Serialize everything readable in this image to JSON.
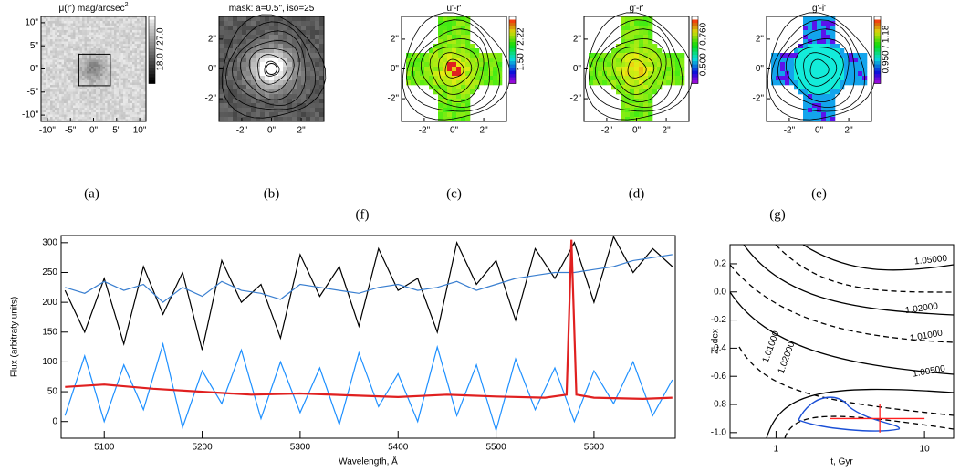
{
  "panels": [
    {
      "title": [
        "μ(r') mag/arcsec",
        "2"
      ],
      "xticks": [
        "-10\"",
        "-5\"",
        "0\"",
        "5\"",
        "10\""
      ],
      "yticks": [
        "10\"",
        "5\"",
        "0\"",
        "-5\"",
        "-10\""
      ],
      "colorbar": "18.0 / 27.0",
      "caption": "(a)"
    },
    {
      "title": [
        "mask: a=0.5\", iso=25"
      ],
      "xticks": [
        "-2\"",
        "0\"",
        "2\""
      ],
      "yticks": [
        "2\"",
        "0\"",
        "-2\""
      ],
      "caption": "(b)"
    },
    {
      "title": [
        "u'-r'"
      ],
      "xticks": [
        "-2\"",
        "0\"",
        "2\""
      ],
      "yticks": [
        "2\"",
        "0\"",
        "-2\""
      ],
      "colorbar": "1.50 / 2.22",
      "caption": "(c)"
    },
    {
      "title": [
        "g'-r'"
      ],
      "xticks": [
        "-2\"",
        "0\"",
        "2\""
      ],
      "yticks": [
        "2\"",
        "0\"",
        "-2\""
      ],
      "colorbar": "0.500 / 0.760",
      "caption": "(d)"
    },
    {
      "title": [
        "g'-i'"
      ],
      "xticks": [
        "-2\"",
        "0\"",
        "2\""
      ],
      "yticks": [
        "2\"",
        "0\"",
        "-2\""
      ],
      "colorbar": "0.950 / 1.18",
      "caption": "(e)"
    }
  ],
  "captions": {
    "f": "(f)",
    "g": "(g)"
  },
  "chart_data": [
    {
      "type": "line",
      "x_label": "Wavelength, Å",
      "y_label": "Flux (arbitraty units)",
      "xlim": [
        5056,
        5683
      ],
      "ylim": [
        -28,
        312
      ],
      "xticks": [
        5100,
        5200,
        5300,
        5400,
        5500,
        5600
      ],
      "yticks": [
        0,
        50,
        100,
        150,
        200,
        250,
        300
      ],
      "series": [
        {
          "color": "#000000",
          "x": [
            5060,
            5080,
            5100,
            5120,
            5140,
            5160,
            5180,
            5200,
            5220,
            5240,
            5260,
            5280,
            5300,
            5320,
            5340,
            5360,
            5380,
            5400,
            5420,
            5440,
            5460,
            5480,
            5500,
            5520,
            5540,
            5560,
            5580,
            5600,
            5620,
            5640,
            5660,
            5680
          ],
          "values": [
            220,
            150,
            240,
            130,
            260,
            180,
            250,
            120,
            270,
            200,
            230,
            140,
            280,
            210,
            260,
            160,
            290,
            220,
            240,
            150,
            300,
            230,
            270,
            170,
            290,
            240,
            300,
            200,
            310,
            250,
            290,
            260
          ]
        },
        {
          "color": "#1e90ff",
          "x": [
            5060,
            5080,
            5100,
            5120,
            5140,
            5160,
            5180,
            5200,
            5220,
            5240,
            5260,
            5280,
            5300,
            5320,
            5340,
            5360,
            5380,
            5400,
            5420,
            5440,
            5460,
            5480,
            5500,
            5520,
            5540,
            5560,
            5580,
            5600,
            5620,
            5640,
            5660,
            5680
          ],
          "values": [
            10,
            110,
            0,
            95,
            20,
            130,
            -10,
            85,
            30,
            120,
            5,
            100,
            15,
            90,
            -5,
            115,
            25,
            80,
            0,
            125,
            10,
            95,
            -15,
            105,
            20,
            90,
            0,
            85,
            30,
            100,
            10,
            70
          ]
        },
        {
          "color": "#3a7fd0",
          "x": [
            5060,
            5080,
            5100,
            5120,
            5140,
            5160,
            5180,
            5200,
            5220,
            5240,
            5260,
            5280,
            5300,
            5320,
            5340,
            5360,
            5380,
            5400,
            5420,
            5440,
            5460,
            5480,
            5500,
            5520,
            5540,
            5560,
            5580,
            5600,
            5620,
            5640,
            5660,
            5680
          ],
          "values": [
            225,
            215,
            235,
            220,
            230,
            200,
            225,
            210,
            235,
            220,
            215,
            205,
            230,
            225,
            220,
            215,
            225,
            230,
            220,
            225,
            235,
            220,
            230,
            240,
            245,
            250,
            250,
            255,
            260,
            270,
            275,
            280
          ]
        },
        {
          "color": "#e02020",
          "x": [
            5060,
            5100,
            5150,
            5200,
            5250,
            5300,
            5350,
            5400,
            5450,
            5500,
            5550,
            5572,
            5577,
            5582,
            5600,
            5650,
            5680
          ],
          "values": [
            58,
            62,
            55,
            50,
            45,
            47,
            44,
            41,
            45,
            42,
            40,
            45,
            305,
            45,
            40,
            38,
            40
          ]
        }
      ]
    },
    {
      "type": "contour",
      "x_label": "t, Gyr",
      "y_label": "Z, dex",
      "log_x": true,
      "xlim": [
        0.49,
        15.7
      ],
      "ylim": [
        -1.04,
        0.336
      ],
      "xticks": [
        1,
        10
      ],
      "yticks": [
        {
          "value": 0.2,
          "label": "0.2"
        },
        {
          "value": 0,
          "label": "0.0"
        },
        {
          "value": -0.2,
          "label": "-0.2"
        },
        {
          "value": -0.4,
          "label": "-0.4"
        },
        {
          "value": -0.6,
          "label": "-0.6"
        },
        {
          "value": -0.8,
          "label": "-0.8"
        },
        {
          "value": -1.0,
          "label": "-1.0"
        }
      ],
      "contour_labels": [
        "1.05000",
        "1.02000",
        "1.01000",
        "1.00500",
        "1.01000",
        "1.02000"
      ],
      "point": {
        "x": 5,
        "y": -0.9,
        "x_low": 2.3,
        "x_high": 10,
        "y_err": 0.1,
        "color": "#ff2020"
      }
    }
  ]
}
